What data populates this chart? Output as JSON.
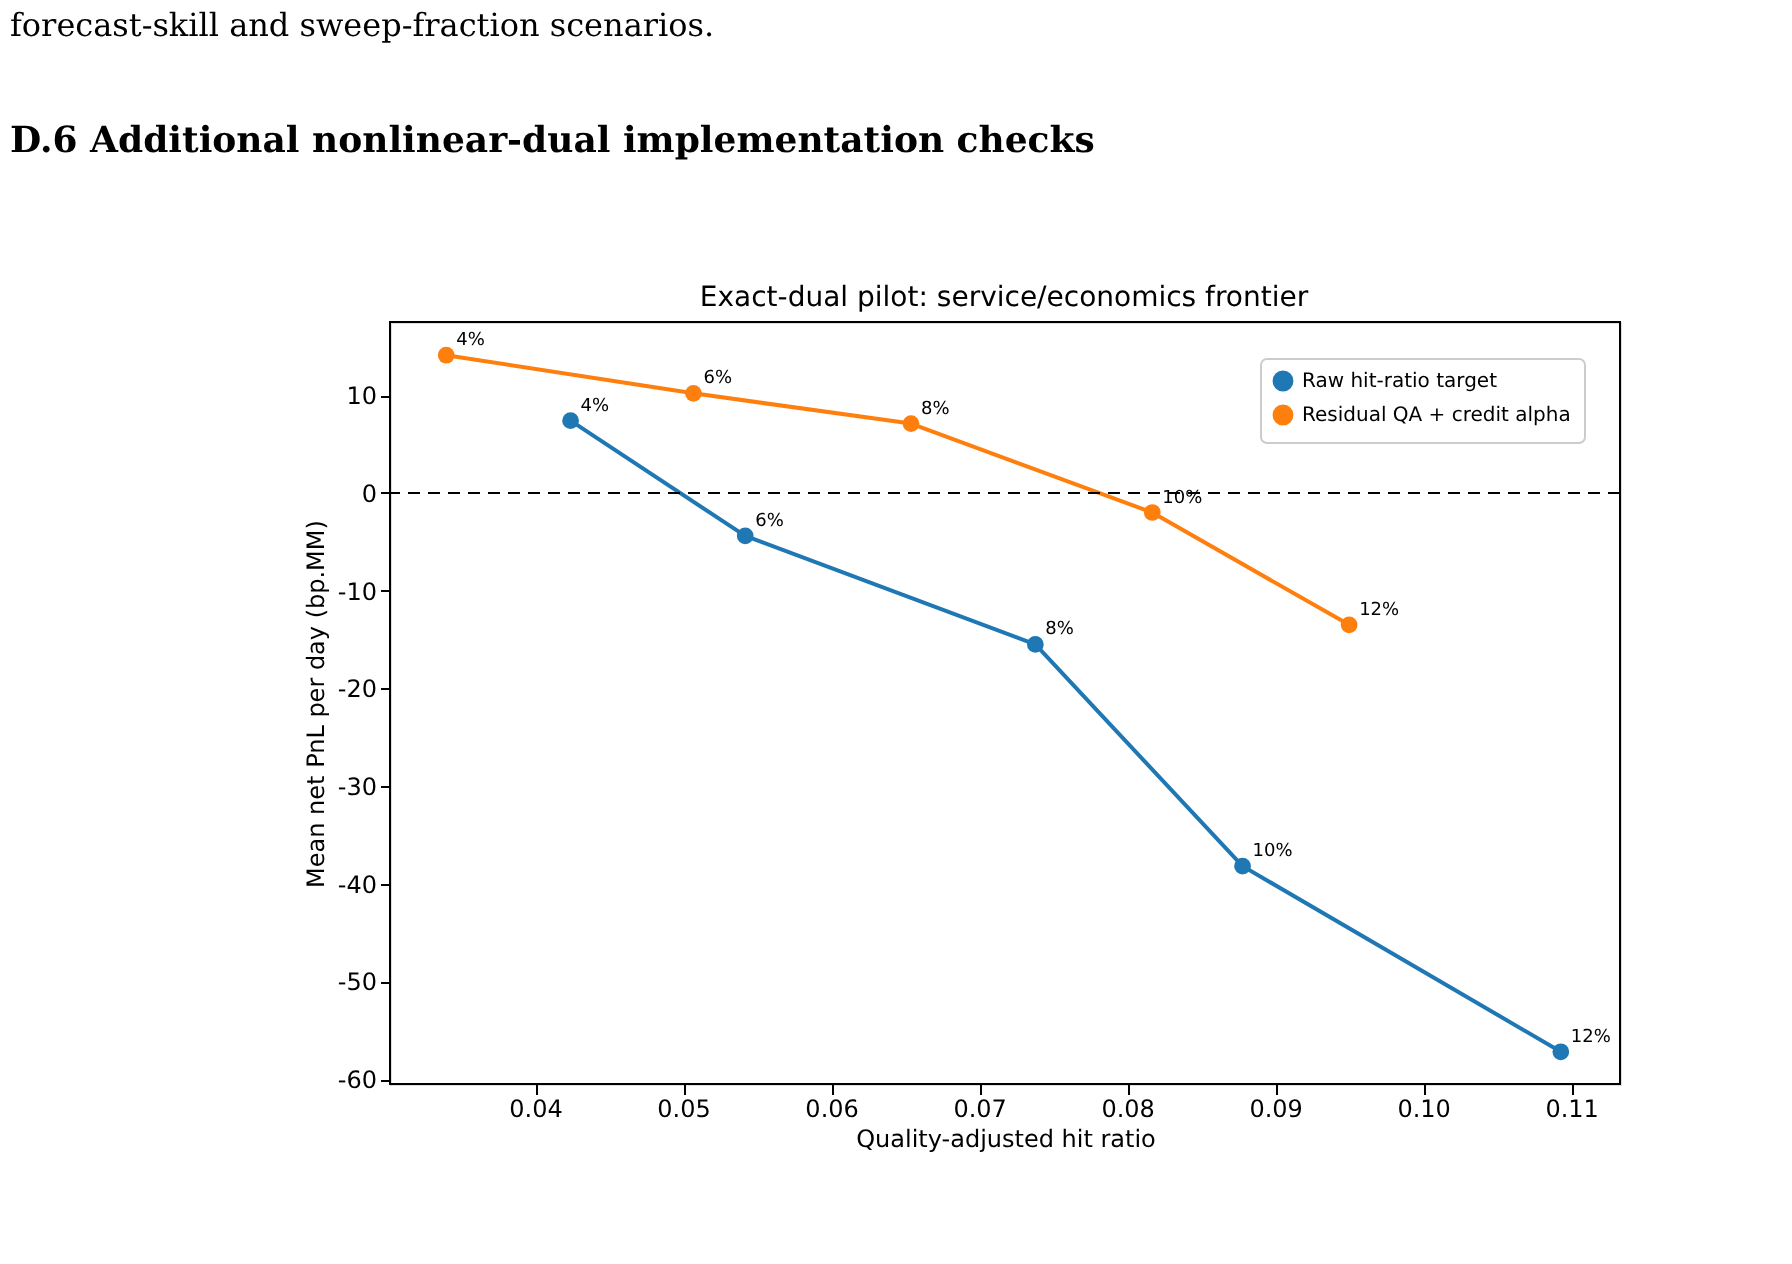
{
  "chart_data": {
    "type": "line",
    "title": "Exact-dual pilot: service/economics frontier",
    "xlabel": "Quality-adjusted hit ratio",
    "ylabel": "Mean net PnL per day (bp.MM)",
    "annotations": [
      "forecast-skill and sweep-fraction scenarios.",
      "D.6    Additional nonlinear-dual implementation checks",
      {
        "text": "4%",
        "x": 0.0424,
        "y": 7.4
      },
      {
        "text": "6%",
        "x": 0.0542,
        "y": -4.4
      },
      {
        "text": "8%",
        "x": 0.0738,
        "y": -15.5
      },
      {
        "text": "10%",
        "x": 0.0878,
        "y": -38.2
      },
      {
        "text": "12%",
        "x": 0.1093,
        "y": -57.2
      },
      {
        "text": "4%",
        "x": 0.034,
        "y": 14.1
      },
      {
        "text": "6%",
        "x": 0.0507,
        "y": 10.2
      },
      {
        "text": "8%",
        "x": 0.0654,
        "y": 7.1
      },
      {
        "text": "10%",
        "x": 0.0817,
        "y": -2.0
      },
      {
        "text": "12%",
        "x": 0.095,
        "y": -13.5
      }
    ],
    "series": [
      {
        "name": "Raw hit-ratio target",
        "color": "#1f77b4",
        "x": [
          0.0424,
          0.0542,
          0.0738,
          0.0878,
          0.1093
        ],
        "values": [
          7.4,
          -4.4,
          -15.5,
          -38.2,
          -57.2
        ]
      },
      {
        "name": "Residual QA + credit alpha",
        "color": "#ff7f0e",
        "x": [
          0.034,
          0.0507,
          0.0654,
          0.0817,
          0.095
        ],
        "values": [
          14.1,
          10.2,
          7.1,
          -2.0,
          -13.5
        ]
      }
    ],
    "xlim": [
      0.0302,
      0.1133
    ],
    "ylim": [
      -60.5,
      17.5
    ],
    "xticks": [
      {
        "value": 0.04,
        "label": "0.04"
      },
      {
        "value": 0.05,
        "label": "0.05"
      },
      {
        "value": 0.06,
        "label": "0.06"
      },
      {
        "value": 0.07,
        "label": "0.07"
      },
      {
        "value": 0.08,
        "label": "0.08"
      },
      {
        "value": 0.09,
        "label": "0.09"
      },
      {
        "value": 0.1,
        "label": "0.10"
      },
      {
        "value": 0.11,
        "label": "0.11"
      }
    ],
    "yticks": [
      -60,
      -50,
      -40,
      -30,
      -20,
      -10,
      0,
      10
    ],
    "ref_lines": [
      {
        "axis": "y",
        "value": 0,
        "color": "#000000",
        "line_style": "dashed"
      }
    ],
    "legend": "top right",
    "marker": "circle",
    "line_style": "solid",
    "grid": false
  }
}
